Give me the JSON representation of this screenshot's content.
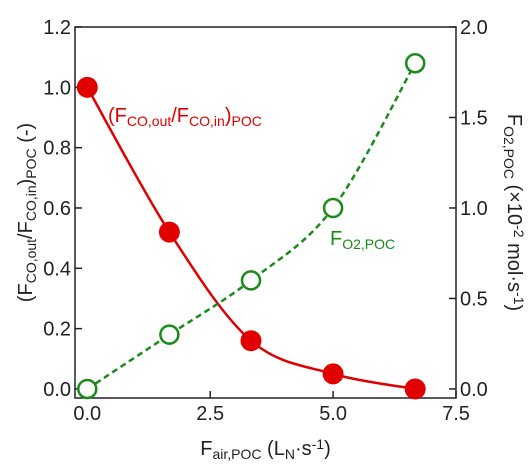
{
  "chart_data": {
    "type": "scatter",
    "x": [
      0,
      1.67,
      3.33,
      5.0,
      6.67
    ],
    "xlabel": [
      {
        "text": "F"
      },
      {
        "text": "air,POC",
        "shift": "sub"
      },
      {
        "text": " (L"
      },
      {
        "text": "N",
        "shift": "sub"
      },
      {
        "text": "·s"
      },
      {
        "text": "-1",
        "shift": "sup"
      },
      {
        "text": ")"
      }
    ],
    "ylabel": [
      {
        "text": "(F"
      },
      {
        "text": "CO,out",
        "shift": "sub"
      },
      {
        "text": "/F"
      },
      {
        "text": "CO,in",
        "shift": "sub"
      },
      {
        "text": ")"
      },
      {
        "text": "POC",
        "shift": "sub"
      },
      {
        "text": " (-)"
      }
    ],
    "y2label": [
      {
        "text": "F"
      },
      {
        "text": "O2,POC",
        "shift": "sub"
      },
      {
        "text": " (×10"
      },
      {
        "text": "-2",
        "shift": "sup"
      },
      {
        "text": " mol·s"
      },
      {
        "text": "-1",
        "shift": "sup"
      },
      {
        "text": ")"
      }
    ],
    "xlim": [
      -0.25,
      7.5
    ],
    "xticks": [
      {
        "value": 0,
        "label": "0.0"
      },
      2.5,
      {
        "value": 5,
        "label": "5.0"
      },
      7.5
    ],
    "ylim": [
      -0.03,
      1.2
    ],
    "yticks": [
      {
        "value": 0,
        "label": "0.0"
      },
      0.2,
      0.4,
      0.6,
      0.8,
      {
        "value": 1,
        "label": "1.0"
      },
      1.2
    ],
    "y2lim": [
      -0.05,
      2.0
    ],
    "y2ticks": [
      {
        "value": 0,
        "label": "0.0"
      },
      0.5,
      {
        "value": 1,
        "label": "1.0"
      },
      1.5,
      {
        "value": 2,
        "label": "2.0"
      }
    ],
    "series": [
      {
        "color": "#e00000",
        "filled": true,
        "line_style": "solid",
        "values": [
          1.0,
          0.52,
          0.16,
          0.05,
          0.0
        ],
        "annotation": [
          {
            "text": "(F"
          },
          {
            "text": "CO,out",
            "shift": "sub"
          },
          {
            "text": "/F"
          },
          {
            "text": "CO,in",
            "shift": "sub"
          },
          {
            "text": ")"
          },
          {
            "text": "POC",
            "shift": "sub"
          }
        ]
      },
      {
        "color": "#1a8a1a",
        "filled": false,
        "line_style": "dashed",
        "axis": "y2",
        "values": [
          0,
          0.3,
          0.6,
          1.0,
          1.8
        ],
        "annotation": [
          {
            "text": "F"
          },
          {
            "text": "O2,POC",
            "shift": "sub"
          }
        ]
      }
    ]
  }
}
